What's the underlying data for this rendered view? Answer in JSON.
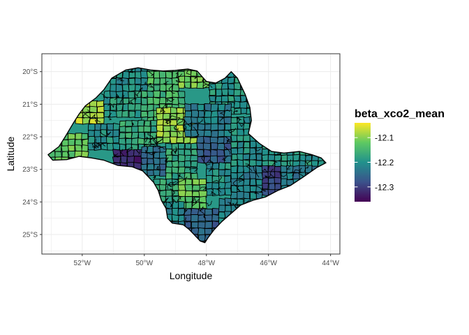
{
  "chart_data": {
    "type": "heatmap",
    "map_type": "choropleth",
    "region": "municipalities",
    "xlabel": "Longitude",
    "ylabel": "Latitude",
    "x_ticks": [
      "52°W",
      "50°W",
      "48°W",
      "46°W",
      "44°W"
    ],
    "x_tick_values": [
      -52,
      -50,
      -48,
      -46,
      -44
    ],
    "y_ticks": [
      "20°S",
      "21°S",
      "22°S",
      "23°S",
      "24°S",
      "25°S"
    ],
    "y_tick_values": [
      -20,
      -21,
      -22,
      -23,
      -24,
      -25
    ],
    "xlim": [
      -53.3,
      -43.7
    ],
    "ylim": [
      -25.6,
      -19.45
    ],
    "grid": true,
    "legend": {
      "title": "beta_xco2_mean",
      "position": "right",
      "labels": [
        "-12.1",
        "-12.2",
        "-12.3"
      ],
      "values": [
        -12.1,
        -12.2,
        -12.3
      ],
      "range": [
        -12.36,
        -12.04
      ],
      "palette": "viridis",
      "colors": [
        "#440154",
        "#3b528b",
        "#21918c",
        "#5ec962",
        "#fde725"
      ]
    },
    "outline": [
      [
        -53.1,
        -22.55
      ],
      [
        -52.75,
        -22.3
      ],
      [
        -52.55,
        -22.0
      ],
      [
        -52.3,
        -21.6
      ],
      [
        -52.1,
        -21.3
      ],
      [
        -51.9,
        -21.05
      ],
      [
        -51.55,
        -20.8
      ],
      [
        -51.3,
        -20.55
      ],
      [
        -51.05,
        -20.2
      ],
      [
        -50.6,
        -19.95
      ],
      [
        -50.2,
        -19.88
      ],
      [
        -49.8,
        -19.95
      ],
      [
        -49.4,
        -19.98
      ],
      [
        -49.0,
        -19.96
      ],
      [
        -48.6,
        -19.92
      ],
      [
        -48.3,
        -19.98
      ],
      [
        -48.0,
        -20.3
      ],
      [
        -47.7,
        -20.35
      ],
      [
        -47.4,
        -20.2
      ],
      [
        -47.2,
        -20.0
      ],
      [
        -47.0,
        -20.2
      ],
      [
        -46.75,
        -20.7
      ],
      [
        -46.6,
        -21.1
      ],
      [
        -46.55,
        -21.5
      ],
      [
        -46.65,
        -21.9
      ],
      [
        -46.3,
        -22.2
      ],
      [
        -45.9,
        -22.45
      ],
      [
        -45.5,
        -22.5
      ],
      [
        -45.0,
        -22.45
      ],
      [
        -44.6,
        -22.55
      ],
      [
        -44.3,
        -22.65
      ],
      [
        -44.15,
        -22.8
      ],
      [
        -44.45,
        -22.95
      ],
      [
        -44.9,
        -23.25
      ],
      [
        -45.3,
        -23.5
      ],
      [
        -45.7,
        -23.65
      ],
      [
        -46.1,
        -23.85
      ],
      [
        -46.5,
        -23.95
      ],
      [
        -46.9,
        -24.1
      ],
      [
        -47.2,
        -24.35
      ],
      [
        -47.5,
        -24.6
      ],
      [
        -47.75,
        -24.85
      ],
      [
        -47.95,
        -25.1
      ],
      [
        -48.05,
        -25.25
      ],
      [
        -48.2,
        -25.2
      ],
      [
        -48.35,
        -25.05
      ],
      [
        -48.55,
        -24.85
      ],
      [
        -48.75,
        -24.7
      ],
      [
        -49.1,
        -24.65
      ],
      [
        -49.25,
        -24.5
      ],
      [
        -49.3,
        -24.2
      ],
      [
        -49.45,
        -23.95
      ],
      [
        -49.55,
        -23.65
      ],
      [
        -49.7,
        -23.4
      ],
      [
        -50.05,
        -23.05
      ],
      [
        -50.4,
        -22.92
      ],
      [
        -50.85,
        -22.88
      ],
      [
        -51.3,
        -22.72
      ],
      [
        -51.7,
        -22.65
      ],
      [
        -52.1,
        -22.6
      ],
      [
        -52.5,
        -22.7
      ],
      [
        -52.95,
        -22.72
      ]
    ],
    "regions": [
      {
        "x": [
          -53.3,
          -51.8
        ],
        "y": [
          -23.0,
          -21.9
        ],
        "value": -12.12
      },
      {
        "x": [
          -51.8,
          -50.8
        ],
        "y": [
          -22.4,
          -21.6
        ],
        "value": -12.2
      },
      {
        "x": [
          -52.2,
          -51.3
        ],
        "y": [
          -21.6,
          -20.9
        ],
        "value": -12.08
      },
      {
        "x": [
          -51.3,
          -50.1
        ],
        "y": [
          -21.4,
          -20.6
        ],
        "value": -12.19
      },
      {
        "x": [
          -51.1,
          -49.9
        ],
        "y": [
          -20.6,
          -19.8
        ],
        "value": -12.2
      },
      {
        "x": [
          -49.9,
          -48.9
        ],
        "y": [
          -20.6,
          -19.8
        ],
        "value": -12.14
      },
      {
        "x": [
          -48.9,
          -47.9
        ],
        "y": [
          -20.5,
          -19.8
        ],
        "value": -12.11
      },
      {
        "x": [
          -47.9,
          -46.5
        ],
        "y": [
          -21.3,
          -19.8
        ],
        "value": -12.19
      },
      {
        "x": [
          -50.1,
          -48.7
        ],
        "y": [
          -21.6,
          -20.6
        ],
        "value": -12.15
      },
      {
        "x": [
          -49.6,
          -48.3
        ],
        "y": [
          -22.2,
          -21.1
        ],
        "value": -12.09
      },
      {
        "x": [
          -50.8,
          -49.6
        ],
        "y": [
          -22.6,
          -21.5
        ],
        "value": -12.17
      },
      {
        "x": [
          -48.7,
          -47.2
        ],
        "y": [
          -22.0,
          -21.0
        ],
        "value": -12.22
      },
      {
        "x": [
          -48.3,
          -47.2
        ],
        "y": [
          -22.8,
          -22.0
        ],
        "value": -12.26
      },
      {
        "x": [
          -47.2,
          -46.2
        ],
        "y": [
          -22.9,
          -21.4
        ],
        "value": -12.2
      },
      {
        "x": [
          -51.0,
          -50.1
        ],
        "y": [
          -23.2,
          -22.4
        ],
        "value": -12.32
      },
      {
        "x": [
          -50.1,
          -49.3
        ],
        "y": [
          -23.2,
          -22.3
        ],
        "value": -12.24
      },
      {
        "x": [
          -49.3,
          -48.3
        ],
        "y": [
          -23.3,
          -22.2
        ],
        "value": -12.17
      },
      {
        "x": [
          -46.2,
          -44.0
        ],
        "y": [
          -23.1,
          -22.2
        ],
        "value": -12.19
      },
      {
        "x": [
          -46.6,
          -45.6
        ],
        "y": [
          -23.8,
          -22.9
        ],
        "value": -12.29
      },
      {
        "x": [
          -47.2,
          -46.2
        ],
        "y": [
          -23.9,
          -22.9
        ],
        "value": -12.22
      },
      {
        "x": [
          -45.6,
          -44.0
        ],
        "y": [
          -23.7,
          -22.9
        ],
        "value": -12.23
      },
      {
        "x": [
          -48.0,
          -47.2
        ],
        "y": [
          -23.8,
          -22.8
        ],
        "value": -12.2
      },
      {
        "x": [
          -49.7,
          -48.9
        ],
        "y": [
          -24.0,
          -23.3
        ],
        "value": -12.17
      },
      {
        "x": [
          -48.9,
          -48.0
        ],
        "y": [
          -24.2,
          -23.3
        ],
        "value": -12.12
      },
      {
        "x": [
          -49.5,
          -48.7
        ],
        "y": [
          -24.8,
          -24.0
        ],
        "value": -12.22
      },
      {
        "x": [
          -48.7,
          -47.6
        ],
        "y": [
          -25.4,
          -24.2
        ],
        "value": -12.26
      },
      {
        "x": [
          -47.6,
          -46.6
        ],
        "y": [
          -24.7,
          -23.9
        ],
        "value": -12.21
      }
    ]
  }
}
